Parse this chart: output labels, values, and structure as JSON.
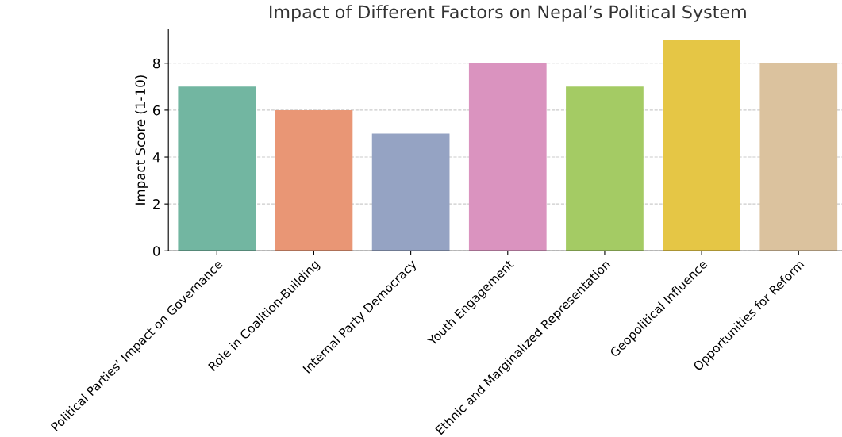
{
  "chart_data": {
    "type": "bar",
    "title": "Impact of Different Factors on Nepal’s Political System",
    "ylabel": "Impact Score (1-10)",
    "categories": [
      "Political Parties' Impact on Governance",
      "Role in Coalition-Building",
      "Internal Party Democracy",
      "Youth Engagement",
      "Ethnic and Marginalized Representation",
      "Geopolitical Influence",
      "Opportunities for Reform"
    ],
    "values": [
      7,
      6,
      5,
      8,
      7,
      9,
      8
    ],
    "colors": [
      "#72b6a1",
      "#e99675",
      "#95a3c3",
      "#da93bf",
      "#a4cb64",
      "#e5c645",
      "#dbc29e"
    ],
    "ylim": [
      0,
      9.45
    ],
    "yticks": [
      0,
      2,
      4,
      6,
      8
    ],
    "grid": "y"
  }
}
